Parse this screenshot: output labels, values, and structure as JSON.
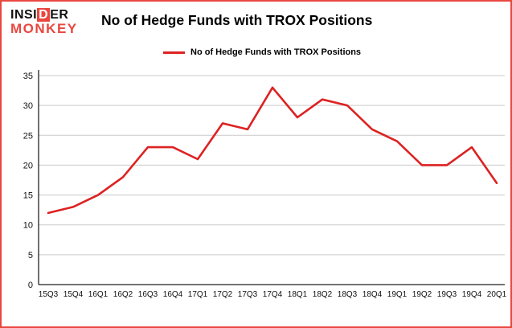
{
  "logo": {
    "word1_pre": "INSI",
    "word1_mark": "D",
    "word1_post": "ER",
    "word2": "MONKEY"
  },
  "header": {
    "title": "No of Hedge Funds with TROX Positions"
  },
  "legend": {
    "label": "No of Hedge Funds with TROX Positions"
  },
  "colors": {
    "border_red": "#e8473f",
    "logo_red": "#e8473f",
    "line_red": "#dd2222",
    "grid_gray": "#c9c9c9",
    "axis_black": "#222222",
    "text_black": "#111111"
  },
  "chart_data": {
    "type": "line",
    "title": "No of Hedge Funds with TROX Positions",
    "categories": [
      "15Q3",
      "15Q4",
      "16Q1",
      "16Q2",
      "16Q3",
      "16Q4",
      "17Q1",
      "17Q2",
      "17Q3",
      "17Q4",
      "18Q1",
      "18Q2",
      "18Q3",
      "18Q4",
      "19Q1",
      "19Q2",
      "19Q3",
      "19Q4",
      "20Q1"
    ],
    "values": [
      12,
      13,
      15,
      18,
      23,
      23,
      21,
      27,
      26,
      33,
      28,
      31,
      30,
      26,
      24,
      20,
      20,
      23,
      17
    ],
    "xlabel": "",
    "ylabel": "",
    "ylim": [
      0,
      35
    ],
    "yticks": [
      0,
      5,
      10,
      15,
      20,
      25,
      30,
      35
    ],
    "grid": true,
    "legend_position": "top",
    "line_color": "#dd2222"
  }
}
